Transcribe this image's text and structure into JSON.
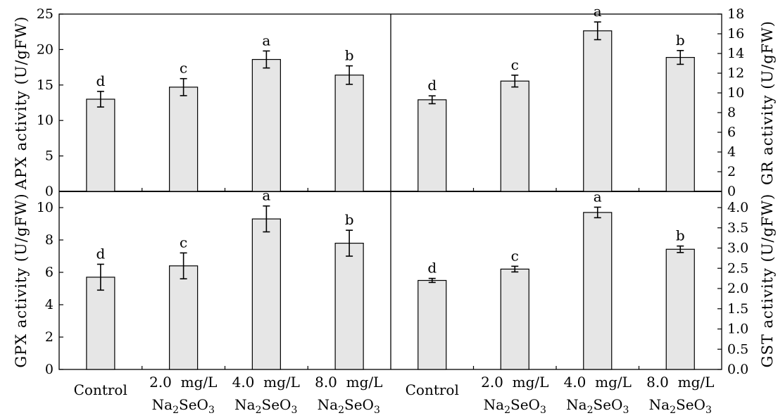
{
  "chart_data": [
    {
      "type": "bar",
      "ylabel": "APX activity (U/gFW)",
      "y_axis_side": "left",
      "ylim": [
        0,
        25
      ],
      "yticks": [
        "0",
        "5",
        "10",
        "15",
        "20",
        "25"
      ],
      "categories": [
        "Control",
        "2.0 mg/L Na2SeO3",
        "4.0 mg/L Na2SeO3",
        "8.0 mg/L Na2SeO3"
      ],
      "values": [
        13.0,
        14.7,
        18.6,
        16.4
      ],
      "errors": [
        1.1,
        1.2,
        1.2,
        1.3
      ],
      "significance": [
        "d",
        "c",
        "a",
        "b"
      ]
    },
    {
      "type": "bar",
      "ylabel": "GR activity (U/gFW)",
      "y_axis_side": "right",
      "ylim": [
        0,
        18
      ],
      "yticks": [
        "0",
        "2",
        "4",
        "6",
        "8",
        "10",
        "12",
        "14",
        "16",
        "18"
      ],
      "categories": [
        "Control",
        "2.0 mg/L Na2SeO3",
        "4.0 mg/L Na2SeO3",
        "8.0 mg/L Na2SeO3"
      ],
      "values": [
        9.3,
        11.2,
        16.3,
        13.6
      ],
      "errors": [
        0.4,
        0.6,
        0.9,
        0.7
      ],
      "significance": [
        "d",
        "c",
        "a",
        "b"
      ]
    },
    {
      "type": "bar",
      "ylabel": "GPX activity (U/gFW)",
      "y_axis_side": "left",
      "ylim": [
        0,
        11
      ],
      "yticks": [
        "0",
        "2",
        "4",
        "6",
        "8",
        "10"
      ],
      "categories": [
        "Control",
        "2.0 mg/L Na2SeO3",
        "4.0 mg/L Na2SeO3",
        "8.0 mg/L Na2SeO3"
      ],
      "values": [
        5.7,
        6.4,
        9.3,
        7.8
      ],
      "errors": [
        0.8,
        0.8,
        0.8,
        0.8
      ],
      "significance": [
        "d",
        "c",
        "a",
        "b"
      ]
    },
    {
      "type": "bar",
      "ylabel": "GST activity (U/gFW)",
      "y_axis_side": "right",
      "ylim": [
        0,
        4.4
      ],
      "yticks": [
        "0.0",
        "0.5",
        "1.0",
        "1.5",
        "2.0",
        "2.5",
        "3.0",
        "3.5",
        "4.0"
      ],
      "categories": [
        "Control",
        "2.0 mg/L Na2SeO3",
        "4.0 mg/L Na2SeO3",
        "8.0 mg/L Na2SeO3"
      ],
      "values": [
        2.2,
        2.48,
        3.88,
        2.97
      ],
      "errors": [
        0.05,
        0.07,
        0.13,
        0.08
      ],
      "significance": [
        "d",
        "c",
        "a",
        "b"
      ]
    }
  ],
  "x_axis": {
    "groups": [
      {
        "ticks": [
          {
            "line1": "Control",
            "line2": ""
          },
          {
            "line1": "2.0  mg/L",
            "line2": "Na2SeO3"
          },
          {
            "line1": "4.0  mg/L",
            "line2": "Na2SeO3"
          },
          {
            "line1": "8.0  mg/L",
            "line2": "Na2SeO3"
          }
        ]
      },
      {
        "ticks": [
          {
            "line1": "Control",
            "line2": ""
          },
          {
            "line1": "2.0  mg/L",
            "line2": "Na2SeO3"
          },
          {
            "line1": "4.0  mg/L",
            "line2": "Na2SeO3"
          },
          {
            "line1": "8.0  mg/L",
            "line2": "Na2SeO3"
          }
        ]
      }
    ]
  },
  "colors": {
    "bar_fill": "#e6e6e6",
    "bar_stroke": "#000000",
    "axis": "#000000"
  }
}
